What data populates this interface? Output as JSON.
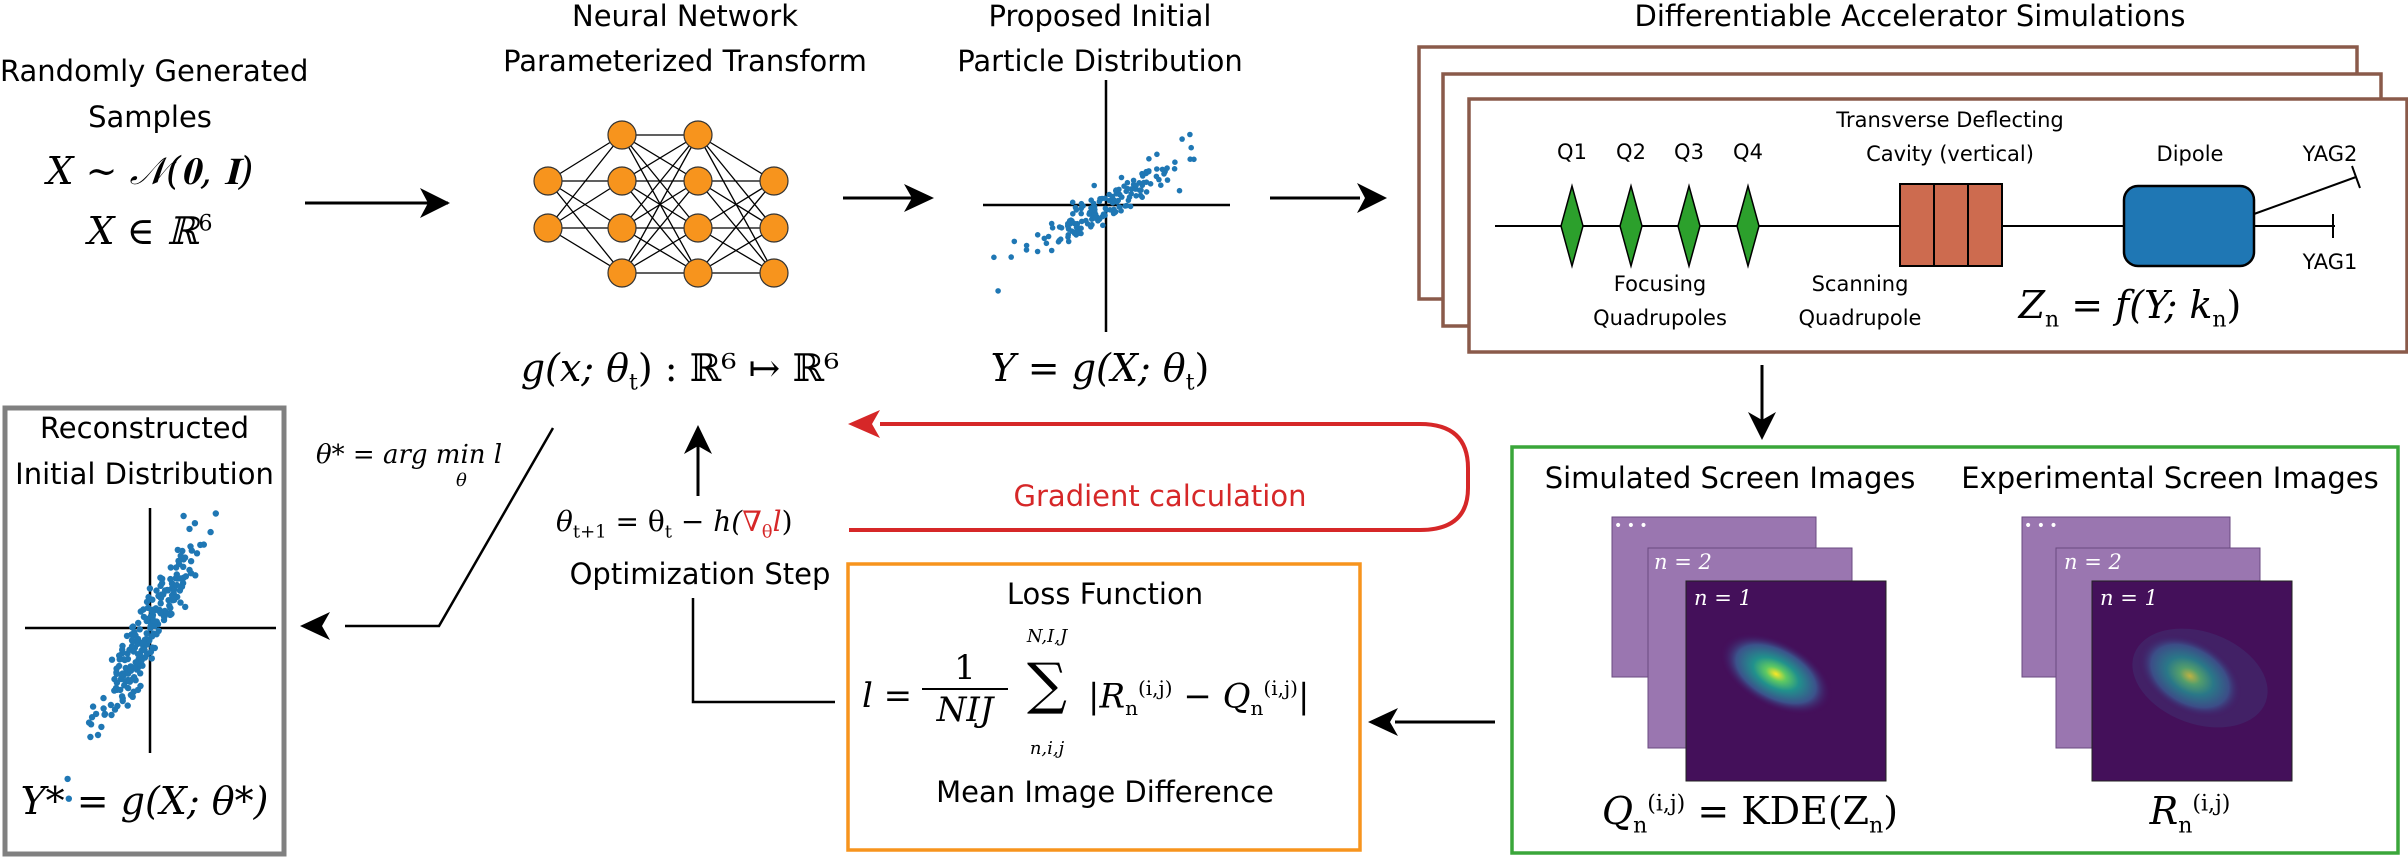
{
  "input": {
    "title_line1": "Randomly Generated",
    "title_line2": "Samples",
    "eq1": "X ∼ 𝒩(𝟎, 𝐈)",
    "eq2_base": "X ∈ ℝ",
    "eq2_sup": "6"
  },
  "nn": {
    "title_line1": "Neural Network",
    "title_line2": "Parameterized Transform",
    "eq": "g(x; θ",
    "eq_sub": "t",
    "eq_rest": ") : ℝ⁶ ↦ ℝ⁶"
  },
  "proposed": {
    "title_line1": "Proposed Initial",
    "title_line2": "Particle Distribution",
    "eq": "Y = g(X; θ",
    "eq_sub": "t",
    "eq_rest": ")"
  },
  "sim": {
    "title": "Differentiable Accelerator Simulations",
    "q1": "Q1",
    "q2": "Q2",
    "q3": "Q3",
    "q4": "Q4",
    "tdc_line1": "Transverse Deflecting",
    "tdc_line2": "Cavity (vertical)",
    "dipole": "Dipole",
    "yag2": "YAG2",
    "yag1": "YAG1",
    "focusing_line1": "Focusing",
    "focusing_line2": "Quadrupoles",
    "scanning_line1": "Scanning",
    "scanning_line2": "Quadrupole",
    "eq": "Z",
    "eq_sub": "n",
    "eq_rest": " = f(Y; k",
    "eq_sub2": "n",
    "eq_end": ")"
  },
  "screens": {
    "sim_title": "Simulated Screen Images",
    "exp_title": "Experimental Screen Images",
    "dots": "• • •",
    "n2": "n = 2",
    "n1": "n = 1",
    "q_eq_base": "Q",
    "q_eq_sub": "n",
    "q_eq_sup": "(i,j)",
    "q_eq_rest": " = KDE(Z",
    "q_eq_sub2": "n",
    "q_eq_end": ")",
    "r_eq_base": "R",
    "r_eq_sub": "n",
    "r_eq_sup": "(i,j)"
  },
  "gradient": {
    "label": "Gradient calculation"
  },
  "loss": {
    "title": "Loss Function",
    "l_eq": "l =",
    "frac_num": "1",
    "frac_den": "NIJ",
    "sum_top": "N,I,J",
    "sum_bot": "n,i,j",
    "sum_symbol": "∑",
    "body": "|R",
    "body_sub": "n",
    "body_sup": "(i,j)",
    "body_mid": " − Q",
    "body_sub2": "n",
    "body_sup2": "(i,j)",
    "body_end": "|",
    "subtitle": "Mean Image Difference"
  },
  "opt": {
    "eq_a": "θ",
    "eq_a_sub": "t+1",
    "eq_b": " = θ",
    "eq_b_sub": "t",
    "eq_c": " − h(",
    "eq_red": "∇",
    "eq_red_sub": "θ",
    "eq_red2": "l",
    "eq_d": ")",
    "label": "Optimization Step"
  },
  "argmin": {
    "eq": "θ* = arg min l",
    "eq_sub": "θ"
  },
  "recon": {
    "title_line1": "Reconstructed",
    "title_line2": "Initial Distribution",
    "eq": "Y* = g(X; θ*)"
  },
  "colors": {
    "node": "#f7941d",
    "scatter": "#1f77b4",
    "quad": "#2ca02c",
    "tdc": "#cd6b4f",
    "dipole": "#1f77b4",
    "sim_frame": "#8a5a4a",
    "screen_frame": "#3aa63a",
    "loss_frame": "#f7941d",
    "recon_frame": "#808080",
    "gradient": "#d62728",
    "screen_bg": "#9a76b0",
    "screen_dark": "#44105a"
  },
  "icons": [
    "right-arrow-icon",
    "down-arrow-icon",
    "up-arrow-icon",
    "left-arrow-icon",
    "neural-net-icon",
    "scatter-plot-icon",
    "quadrupole-icon",
    "cavity-icon",
    "dipole-icon"
  ]
}
